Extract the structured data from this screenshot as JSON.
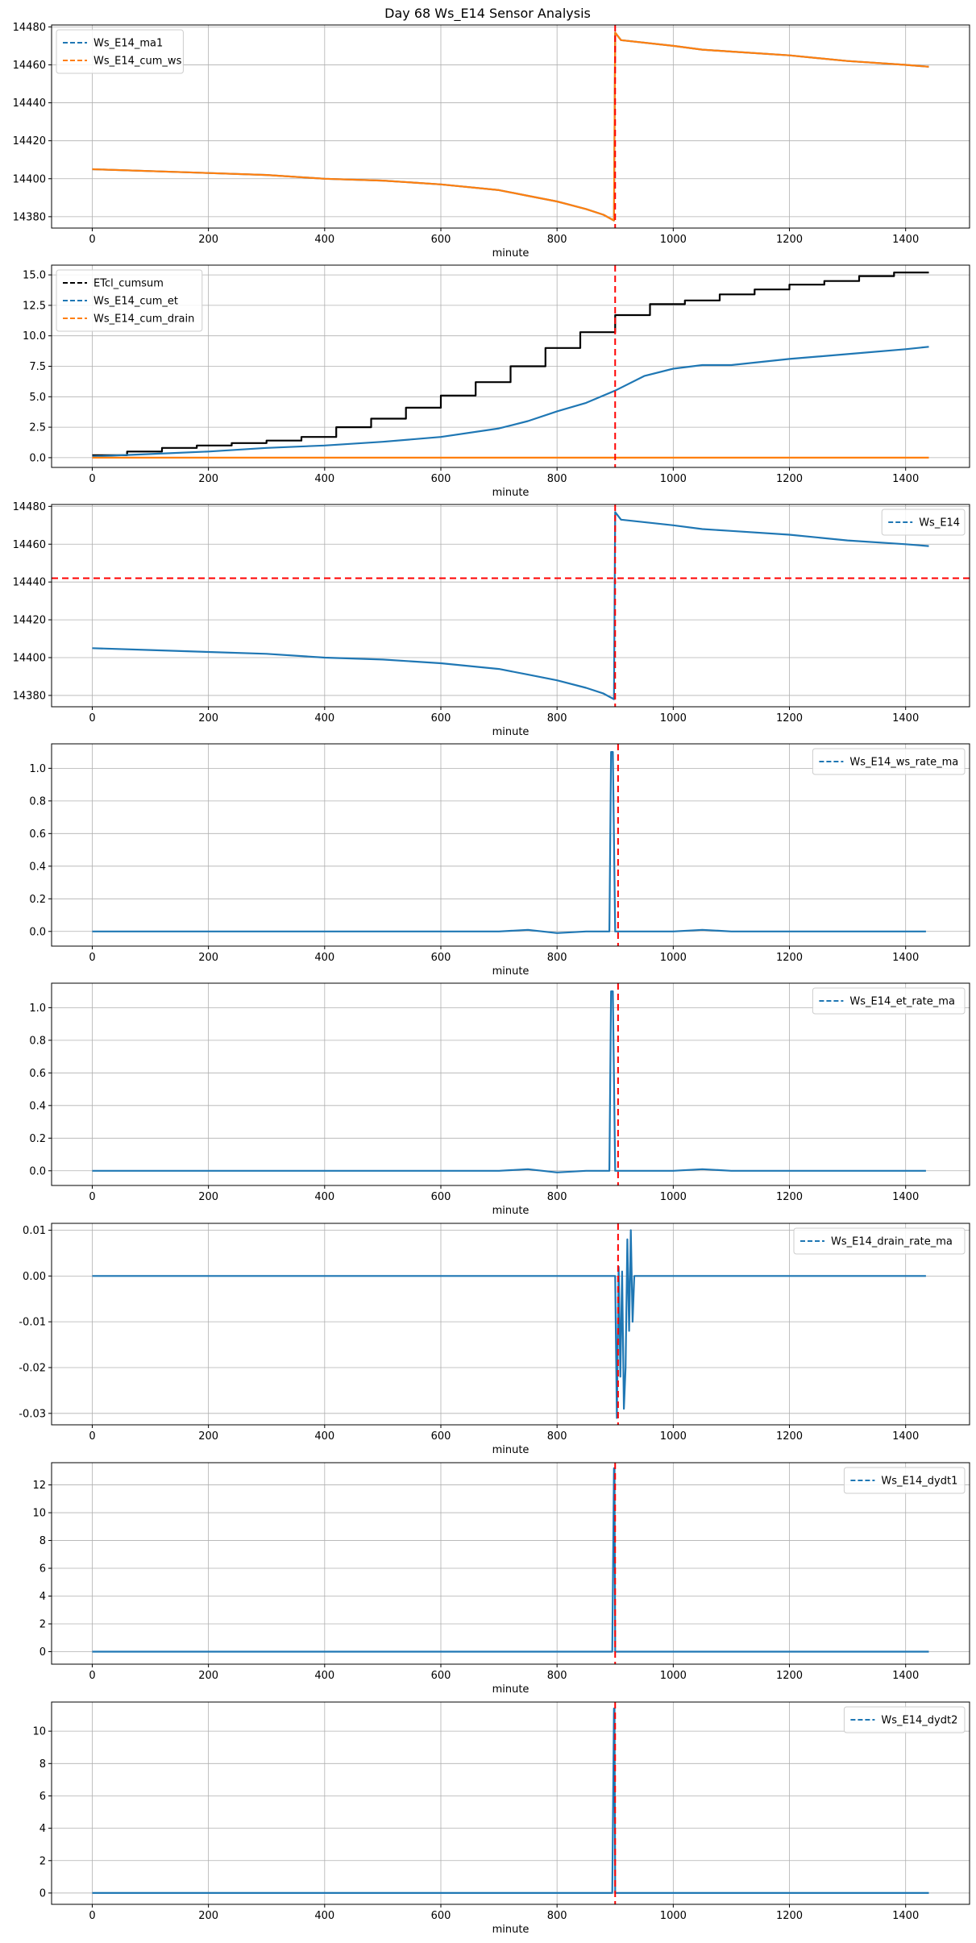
{
  "figure": {
    "title": "Day 68 Ws_E14 Sensor Analysis",
    "colors": {
      "blue": "#1f77b4",
      "orange": "#ff7f0e",
      "black": "#000000",
      "red": "#ff0000",
      "grid": "#b0b0b0"
    }
  },
  "chart_data": [
    {
      "type": "line",
      "xlabel": "minute",
      "xlim": [
        -70,
        1510
      ],
      "ylim": [
        14374,
        14481
      ],
      "xticks": [
        0,
        200,
        400,
        600,
        800,
        1000,
        1200,
        1400
      ],
      "yticks": [
        14380,
        14400,
        14420,
        14440,
        14460,
        14480
      ],
      "ytick_labels": [
        "14380",
        "14400",
        "14420",
        "14440",
        "14460",
        "14480"
      ],
      "legend": "top-left",
      "vline": {
        "x": 900,
        "color": "#ff0000"
      },
      "series": [
        {
          "name": "Ws_E14_ma1",
          "color": "#1f77b4",
          "x": [
            0,
            100,
            200,
            300,
            400,
            500,
            600,
            700,
            750,
            800,
            850,
            880,
            898,
            900,
            910,
            1000,
            1050,
            1100,
            1200,
            1300,
            1400,
            1440
          ],
          "y": [
            14405,
            14404,
            14403,
            14402,
            14400,
            14399,
            14397,
            14394,
            14391,
            14388,
            14384,
            14381,
            14378,
            14477,
            14473,
            14470,
            14468,
            14467,
            14465,
            14462,
            14460,
            14459
          ]
        },
        {
          "name": "Ws_E14_cum_ws",
          "color": "#ff7f0e",
          "x": [
            0,
            100,
            200,
            300,
            400,
            500,
            600,
            700,
            750,
            800,
            850,
            880,
            898,
            900,
            910,
            1000,
            1050,
            1100,
            1200,
            1300,
            1400,
            1440
          ],
          "y": [
            14405,
            14404,
            14403,
            14402,
            14400,
            14399,
            14397,
            14394,
            14391,
            14388,
            14384,
            14381,
            14378,
            14477,
            14473,
            14470,
            14468,
            14467,
            14465,
            14462,
            14460,
            14459
          ]
        }
      ]
    },
    {
      "type": "line",
      "xlabel": "minute",
      "xlim": [
        -70,
        1510
      ],
      "ylim": [
        -0.8,
        15.8
      ],
      "xticks": [
        0,
        200,
        400,
        600,
        800,
        1000,
        1200,
        1400
      ],
      "yticks": [
        0,
        2.5,
        5,
        7.5,
        10,
        12.5,
        15
      ],
      "ytick_labels": [
        "0.0",
        "2.5",
        "5.0",
        "7.5",
        "10.0",
        "12.5",
        "15.0"
      ],
      "legend": "top-left",
      "vline": {
        "x": 900,
        "color": "#ff0000"
      },
      "series": [
        {
          "name": "ETcl_cumsum",
          "color": "#000000",
          "x": [
            0,
            60,
            60,
            120,
            120,
            180,
            180,
            240,
            240,
            300,
            300,
            360,
            360,
            420,
            420,
            480,
            480,
            540,
            540,
            600,
            600,
            660,
            660,
            720,
            720,
            780,
            780,
            840,
            840,
            900,
            900,
            960,
            960,
            1020,
            1020,
            1080,
            1080,
            1140,
            1140,
            1200,
            1200,
            1260,
            1260,
            1320,
            1320,
            1380,
            1380,
            1440
          ],
          "y": [
            0.2,
            0.2,
            0.5,
            0.5,
            0.8,
            0.8,
            1.0,
            1.0,
            1.2,
            1.2,
            1.4,
            1.4,
            1.7,
            1.7,
            2.5,
            2.5,
            3.2,
            3.2,
            4.1,
            4.1,
            5.1,
            5.1,
            6.2,
            6.2,
            7.5,
            7.5,
            9.0,
            9.0,
            10.3,
            10.3,
            11.7,
            11.7,
            12.6,
            12.6,
            12.9,
            12.9,
            13.4,
            13.4,
            13.8,
            13.8,
            14.2,
            14.2,
            14.5,
            14.5,
            14.9,
            14.9,
            15.2,
            15.2
          ]
        },
        {
          "name": "Ws_E14_cum_et",
          "color": "#1f77b4",
          "x": [
            0,
            100,
            200,
            300,
            400,
            500,
            600,
            700,
            750,
            800,
            850,
            900,
            950,
            1000,
            1050,
            1100,
            1200,
            1300,
            1400,
            1440
          ],
          "y": [
            0.1,
            0.3,
            0.5,
            0.8,
            1.0,
            1.3,
            1.7,
            2.4,
            3.0,
            3.8,
            4.5,
            5.5,
            6.7,
            7.3,
            7.6,
            7.6,
            8.1,
            8.5,
            8.9,
            9.1
          ]
        },
        {
          "name": "Ws_E14_cum_drain",
          "color": "#ff7f0e",
          "x": [
            0,
            1440
          ],
          "y": [
            0,
            0
          ]
        }
      ]
    },
    {
      "type": "line",
      "xlabel": "minute",
      "xlim": [
        -70,
        1510
      ],
      "ylim": [
        14374,
        14481
      ],
      "xticks": [
        0,
        200,
        400,
        600,
        800,
        1000,
        1200,
        1400
      ],
      "yticks": [
        14380,
        14400,
        14420,
        14440,
        14460,
        14480
      ],
      "ytick_labels": [
        "14380",
        "14400",
        "14420",
        "14440",
        "14460",
        "14480"
      ],
      "legend": "top-right",
      "vline": {
        "x": 900,
        "color": "#ff0000"
      },
      "hline": {
        "y": 14442,
        "color": "#ff0000"
      },
      "series": [
        {
          "name": "Ws_E14",
          "color": "#1f77b4",
          "x": [
            0,
            100,
            200,
            300,
            400,
            500,
            600,
            700,
            750,
            800,
            850,
            880,
            898,
            900,
            910,
            1000,
            1050,
            1100,
            1200,
            1300,
            1400,
            1440
          ],
          "y": [
            14405,
            14404,
            14403,
            14402,
            14400,
            14399,
            14397,
            14394,
            14391,
            14388,
            14384,
            14381,
            14378,
            14477,
            14473,
            14470,
            14468,
            14467,
            14465,
            14462,
            14460,
            14459
          ]
        }
      ]
    },
    {
      "type": "line",
      "xlabel": "minute",
      "xlim": [
        -70,
        1510
      ],
      "ylim": [
        -0.09,
        1.15
      ],
      "xticks": [
        0,
        200,
        400,
        600,
        800,
        1000,
        1200,
        1400
      ],
      "yticks": [
        0,
        0.2,
        0.4,
        0.6,
        0.8,
        1.0
      ],
      "ytick_labels": [
        "0.0",
        "0.2",
        "0.4",
        "0.6",
        "0.8",
        "1.0"
      ],
      "legend": "top-right",
      "vline": {
        "x": 905,
        "color": "#ff0000"
      },
      "series": [
        {
          "name": "Ws_E14_ws_rate_ma",
          "color": "#1f77b4",
          "x": [
            0,
            100,
            200,
            300,
            400,
            500,
            600,
            700,
            750,
            800,
            850,
            880,
            890,
            893,
            896,
            900,
            903,
            1000,
            1050,
            1100,
            1200,
            1300,
            1400,
            1435
          ],
          "y": [
            0,
            0,
            0,
            0,
            0,
            0,
            0,
            0,
            0.01,
            -0.01,
            0,
            0,
            0,
            1.1,
            1.1,
            0,
            0,
            0,
            0.01,
            0,
            0,
            0,
            0,
            0
          ]
        }
      ]
    },
    {
      "type": "line",
      "xlabel": "minute",
      "xlim": [
        -70,
        1510
      ],
      "ylim": [
        -0.09,
        1.15
      ],
      "xticks": [
        0,
        200,
        400,
        600,
        800,
        1000,
        1200,
        1400
      ],
      "yticks": [
        0,
        0.2,
        0.4,
        0.6,
        0.8,
        1.0
      ],
      "ytick_labels": [
        "0.0",
        "0.2",
        "0.4",
        "0.6",
        "0.8",
        "1.0"
      ],
      "legend": "top-right",
      "vline": {
        "x": 905,
        "color": "#ff0000"
      },
      "series": [
        {
          "name": "Ws_E14_et_rate_ma",
          "color": "#1f77b4",
          "x": [
            0,
            100,
            200,
            300,
            400,
            500,
            600,
            700,
            750,
            800,
            850,
            880,
            890,
            893,
            896,
            900,
            903,
            1000,
            1050,
            1100,
            1200,
            1300,
            1400,
            1435
          ],
          "y": [
            0,
            0,
            0,
            0,
            0,
            0,
            0,
            0,
            0.01,
            -0.01,
            0,
            0,
            0,
            1.1,
            1.1,
            0,
            0,
            0,
            0.01,
            0,
            0,
            0,
            0,
            0
          ]
        }
      ]
    },
    {
      "type": "line",
      "xlabel": "minute",
      "xlim": [
        -70,
        1510
      ],
      "ylim": [
        -0.0325,
        0.0115
      ],
      "xticks": [
        0,
        200,
        400,
        600,
        800,
        1000,
        1200,
        1400
      ],
      "yticks": [
        -0.03,
        -0.02,
        -0.01,
        0,
        0.01
      ],
      "ytick_labels": [
        "-0.03",
        "-0.02",
        "-0.01",
        "0.00",
        "0.01"
      ],
      "legend": "top-right",
      "vline": {
        "x": 905,
        "color": "#ff0000"
      },
      "series": [
        {
          "name": "Ws_E14_drain_rate_ma",
          "color": "#1f77b4",
          "x": [
            0,
            900,
            903,
            906,
            909,
            912,
            915,
            918,
            921,
            924,
            927,
            930,
            933,
            1435
          ],
          "y": [
            0,
            0,
            -0.031,
            0.002,
            -0.022,
            0.001,
            -0.029,
            -0.02,
            0.008,
            -0.012,
            0.01,
            -0.01,
            0,
            0
          ]
        }
      ]
    },
    {
      "type": "line",
      "xlabel": "minute",
      "xlim": [
        -70,
        1510
      ],
      "ylim": [
        -0.9,
        13.6
      ],
      "xticks": [
        0,
        200,
        400,
        600,
        800,
        1000,
        1200,
        1400
      ],
      "yticks": [
        0,
        2,
        4,
        6,
        8,
        10,
        12
      ],
      "ytick_labels": [
        "0",
        "2",
        "4",
        "6",
        "8",
        "10",
        "12"
      ],
      "legend": "top-right",
      "vline": {
        "x": 900,
        "color": "#ff0000"
      },
      "series": [
        {
          "name": "Ws_E14_dydt1",
          "color": "#1f77b4",
          "x": [
            0,
            895,
            898,
            899,
            900,
            902,
            1440
          ],
          "y": [
            0,
            0,
            13.2,
            13.2,
            0,
            0,
            0
          ]
        }
      ]
    },
    {
      "type": "line",
      "xlabel": "minute",
      "xlim": [
        -70,
        1510
      ],
      "ylim": [
        -0.7,
        11.8
      ],
      "xticks": [
        0,
        200,
        400,
        600,
        800,
        1000,
        1200,
        1400
      ],
      "yticks": [
        0,
        2,
        4,
        6,
        8,
        10
      ],
      "ytick_labels": [
        "0",
        "2",
        "4",
        "6",
        "8",
        "10"
      ],
      "legend": "top-right",
      "vline": {
        "x": 900,
        "color": "#ff0000"
      },
      "series": [
        {
          "name": "Ws_E14_dydt2",
          "color": "#1f77b4",
          "x": [
            0,
            895,
            898,
            899,
            900,
            902,
            1440
          ],
          "y": [
            0,
            0,
            11.4,
            11.4,
            0,
            0,
            0
          ]
        }
      ]
    }
  ]
}
